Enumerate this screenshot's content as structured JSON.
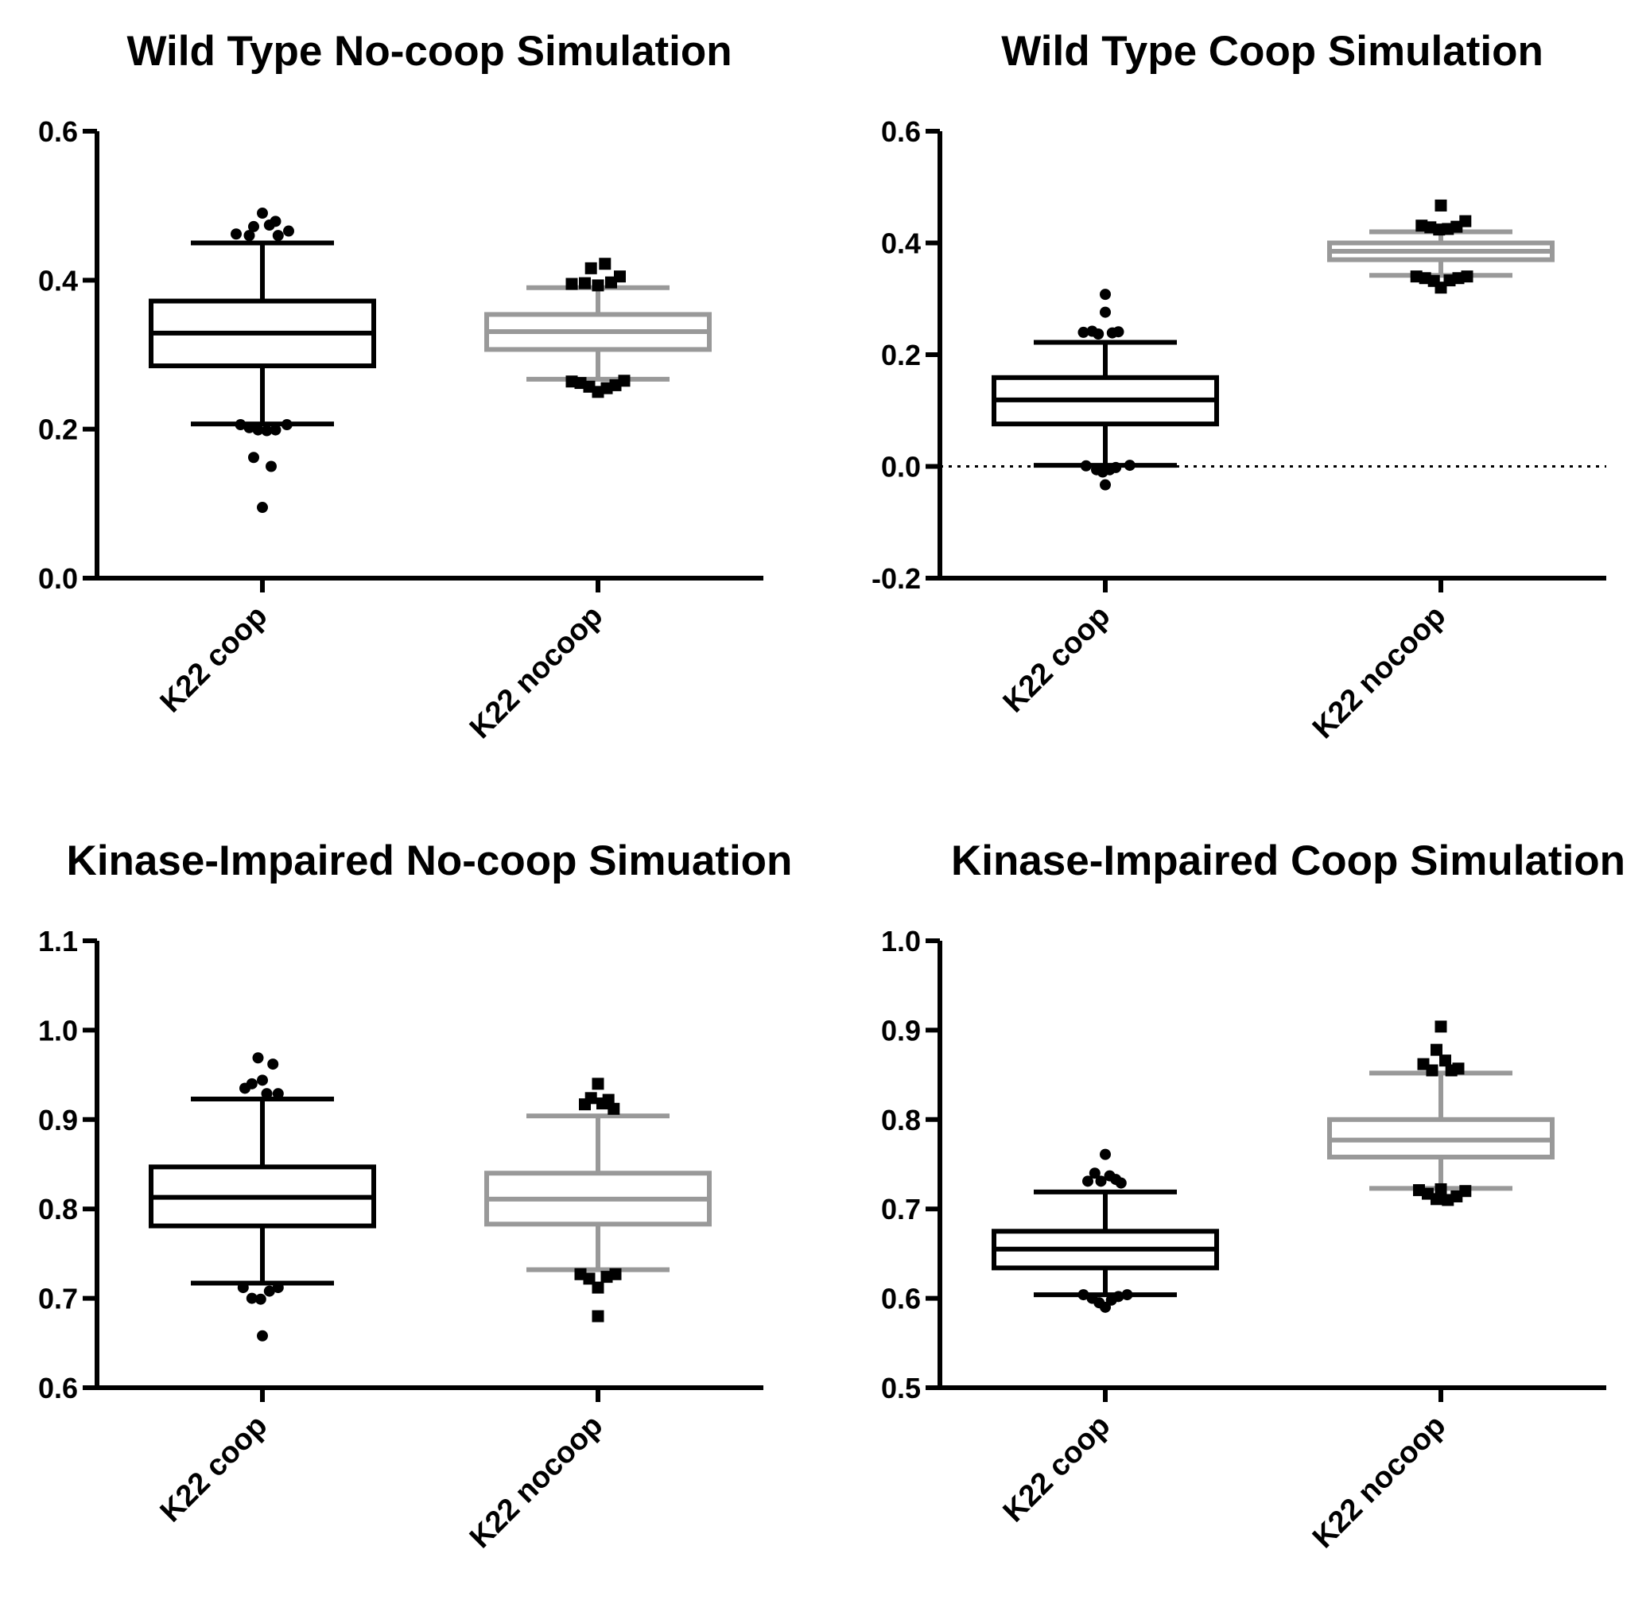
{
  "chart_data": [
    {
      "type": "box",
      "title": "Wild Type  No-coop Simulation",
      "ylim": [
        0,
        0.6
      ],
      "yticks": [
        "0.0",
        "0.2",
        "0.4",
        "0.6"
      ],
      "zero_line": false,
      "categories": [
        "K22 coop",
        "K22 nocoop"
      ],
      "series": [
        {
          "category": "K22 coop",
          "color": "#000000",
          "marker": "circle",
          "whisker_low": 0.207,
          "q1": 0.285,
          "median": 0.329,
          "q3": 0.372,
          "whisker_high": 0.45,
          "outliers": [
            {
              "x": -0.3,
              "y": 0.462
            },
            {
              "x": -0.15,
              "y": 0.46
            },
            {
              "x": -0.1,
              "y": 0.472
            },
            {
              "x": 0.0,
              "y": 0.49
            },
            {
              "x": 0.08,
              "y": 0.474
            },
            {
              "x": 0.15,
              "y": 0.479
            },
            {
              "x": 0.18,
              "y": 0.46
            },
            {
              "x": 0.3,
              "y": 0.466
            },
            {
              "x": -0.25,
              "y": 0.206
            },
            {
              "x": -0.15,
              "y": 0.202
            },
            {
              "x": -0.05,
              "y": 0.199
            },
            {
              "x": 0.05,
              "y": 0.198
            },
            {
              "x": 0.15,
              "y": 0.199
            },
            {
              "x": 0.28,
              "y": 0.206
            },
            {
              "x": -0.1,
              "y": 0.162
            },
            {
              "x": 0.1,
              "y": 0.15
            },
            {
              "x": 0.0,
              "y": 0.095
            }
          ]
        },
        {
          "category": "K22 nocoop",
          "color": "#999999",
          "marker": "square",
          "whisker_low": 0.267,
          "q1": 0.307,
          "median": 0.331,
          "q3": 0.354,
          "whisker_high": 0.39,
          "outliers": [
            {
              "x": -0.3,
              "y": 0.395
            },
            {
              "x": -0.15,
              "y": 0.396
            },
            {
              "x": -0.08,
              "y": 0.416
            },
            {
              "x": 0.0,
              "y": 0.393
            },
            {
              "x": 0.08,
              "y": 0.422
            },
            {
              "x": 0.15,
              "y": 0.397
            },
            {
              "x": 0.25,
              "y": 0.405
            },
            {
              "x": -0.3,
              "y": 0.264
            },
            {
              "x": -0.2,
              "y": 0.262
            },
            {
              "x": -0.1,
              "y": 0.257
            },
            {
              "x": 0.0,
              "y": 0.25
            },
            {
              "x": 0.1,
              "y": 0.255
            },
            {
              "x": 0.2,
              "y": 0.259
            },
            {
              "x": 0.3,
              "y": 0.265
            }
          ]
        }
      ]
    },
    {
      "type": "box",
      "title": "Wild Type Coop Simulation",
      "ylim": [
        -0.2,
        0.6
      ],
      "yticks": [
        "-0.2",
        "0.0",
        "0.2",
        "0.4",
        "0.6"
      ],
      "zero_line": true,
      "categories": [
        "K22 coop",
        "K22 nocoop"
      ],
      "series": [
        {
          "category": "K22 coop",
          "color": "#000000",
          "marker": "circle",
          "whisker_low": 0.002,
          "q1": 0.076,
          "median": 0.119,
          "q3": 0.159,
          "whisker_high": 0.222,
          "outliers": [
            {
              "x": -0.25,
              "y": 0.24
            },
            {
              "x": -0.15,
              "y": 0.242
            },
            {
              "x": -0.08,
              "y": 0.237
            },
            {
              "x": 0.0,
              "y": 0.276
            },
            {
              "x": 0.0,
              "y": 0.308
            },
            {
              "x": 0.08,
              "y": 0.239
            },
            {
              "x": 0.15,
              "y": 0.241
            },
            {
              "x": -0.22,
              "y": 0.001
            },
            {
              "x": -0.1,
              "y": -0.006
            },
            {
              "x": -0.03,
              "y": -0.01
            },
            {
              "x": 0.05,
              "y": -0.006
            },
            {
              "x": 0.12,
              "y": -0.002
            },
            {
              "x": 0.28,
              "y": 0.002
            },
            {
              "x": 0.0,
              "y": -0.033
            }
          ]
        },
        {
          "category": "K22 nocoop",
          "color": "#999999",
          "marker": "square",
          "whisker_low": 0.342,
          "q1": 0.37,
          "median": 0.385,
          "q3": 0.4,
          "whisker_high": 0.42,
          "outliers": [
            {
              "x": -0.22,
              "y": 0.431
            },
            {
              "x": -0.12,
              "y": 0.428
            },
            {
              "x": -0.02,
              "y": 0.424
            },
            {
              "x": 0.08,
              "y": 0.425
            },
            {
              "x": 0.18,
              "y": 0.429
            },
            {
              "x": 0.28,
              "y": 0.439
            },
            {
              "x": 0.0,
              "y": 0.467
            },
            {
              "x": -0.28,
              "y": 0.34
            },
            {
              "x": -0.18,
              "y": 0.337
            },
            {
              "x": -0.08,
              "y": 0.332
            },
            {
              "x": 0.0,
              "y": 0.32
            },
            {
              "x": 0.1,
              "y": 0.333
            },
            {
              "x": 0.2,
              "y": 0.337
            },
            {
              "x": 0.3,
              "y": 0.34
            }
          ]
        }
      ]
    },
    {
      "type": "box",
      "title": "Kinase-Impaired No-coop Simuation",
      "ylim": [
        0.6,
        1.1
      ],
      "yticks": [
        "0.6",
        "0.7",
        "0.8",
        "0.9",
        "1.0",
        "1.1"
      ],
      "zero_line": false,
      "categories": [
        "K22 coop",
        "K22 nocoop"
      ],
      "series": [
        {
          "category": "K22 coop",
          "color": "#000000",
          "marker": "circle",
          "whisker_low": 0.717,
          "q1": 0.781,
          "median": 0.813,
          "q3": 0.847,
          "whisker_high": 0.923,
          "outliers": [
            {
              "x": -0.2,
              "y": 0.935
            },
            {
              "x": -0.12,
              "y": 0.94
            },
            {
              "x": -0.05,
              "y": 0.969
            },
            {
              "x": 0.0,
              "y": 0.944
            },
            {
              "x": 0.05,
              "y": 0.929
            },
            {
              "x": 0.12,
              "y": 0.962
            },
            {
              "x": 0.18,
              "y": 0.929
            },
            {
              "x": -0.22,
              "y": 0.712
            },
            {
              "x": -0.12,
              "y": 0.7
            },
            {
              "x": -0.02,
              "y": 0.699
            },
            {
              "x": 0.08,
              "y": 0.708
            },
            {
              "x": 0.18,
              "y": 0.712
            },
            {
              "x": 0.0,
              "y": 0.658
            }
          ]
        },
        {
          "category": "K22 nocoop",
          "color": "#999999",
          "marker": "square",
          "whisker_low": 0.732,
          "q1": 0.783,
          "median": 0.811,
          "q3": 0.84,
          "whisker_high": 0.904,
          "outliers": [
            {
              "x": -0.15,
              "y": 0.917
            },
            {
              "x": -0.08,
              "y": 0.924
            },
            {
              "x": 0.0,
              "y": 0.94
            },
            {
              "x": 0.05,
              "y": 0.918
            },
            {
              "x": 0.12,
              "y": 0.922
            },
            {
              "x": 0.18,
              "y": 0.912
            },
            {
              "x": -0.2,
              "y": 0.727
            },
            {
              "x": -0.1,
              "y": 0.722
            },
            {
              "x": 0.0,
              "y": 0.712
            },
            {
              "x": 0.1,
              "y": 0.724
            },
            {
              "x": 0.2,
              "y": 0.727
            },
            {
              "x": 0.0,
              "y": 0.68
            }
          ]
        }
      ]
    },
    {
      "type": "box",
      "title": "Kinase-Impaired Coop Simulation",
      "ylim": [
        0.5,
        1.0
      ],
      "yticks": [
        "0.5",
        "0.6",
        "0.7",
        "0.8",
        "0.9",
        "1.0"
      ],
      "zero_line": false,
      "categories": [
        "K22 coop",
        "K22 nocoop"
      ],
      "series": [
        {
          "category": "K22 coop",
          "color": "#000000",
          "marker": "circle",
          "whisker_low": 0.604,
          "q1": 0.634,
          "median": 0.655,
          "q3": 0.675,
          "whisker_high": 0.719,
          "outliers": [
            {
              "x": -0.2,
              "y": 0.731
            },
            {
              "x": -0.12,
              "y": 0.74
            },
            {
              "x": -0.05,
              "y": 0.731
            },
            {
              "x": 0.0,
              "y": 0.761
            },
            {
              "x": 0.05,
              "y": 0.737
            },
            {
              "x": 0.12,
              "y": 0.733
            },
            {
              "x": 0.18,
              "y": 0.729
            },
            {
              "x": -0.25,
              "y": 0.604
            },
            {
              "x": -0.15,
              "y": 0.6
            },
            {
              "x": -0.07,
              "y": 0.595
            },
            {
              "x": 0.0,
              "y": 0.59
            },
            {
              "x": 0.07,
              "y": 0.598
            },
            {
              "x": 0.15,
              "y": 0.602
            },
            {
              "x": 0.25,
              "y": 0.604
            }
          ]
        },
        {
          "category": "K22 nocoop",
          "color": "#999999",
          "marker": "square",
          "whisker_low": 0.723,
          "q1": 0.758,
          "median": 0.777,
          "q3": 0.8,
          "whisker_high": 0.852,
          "outliers": [
            {
              "x": -0.2,
              "y": 0.862
            },
            {
              "x": -0.1,
              "y": 0.855
            },
            {
              "x": -0.05,
              "y": 0.878
            },
            {
              "x": 0.0,
              "y": 0.904
            },
            {
              "x": 0.05,
              "y": 0.866
            },
            {
              "x": 0.12,
              "y": 0.855
            },
            {
              "x": 0.2,
              "y": 0.857
            },
            {
              "x": -0.25,
              "y": 0.721
            },
            {
              "x": -0.15,
              "y": 0.717
            },
            {
              "x": -0.05,
              "y": 0.711
            },
            {
              "x": 0.0,
              "y": 0.722
            },
            {
              "x": 0.08,
              "y": 0.71
            },
            {
              "x": 0.18,
              "y": 0.714
            },
            {
              "x": 0.28,
              "y": 0.72
            }
          ]
        }
      ]
    }
  ]
}
